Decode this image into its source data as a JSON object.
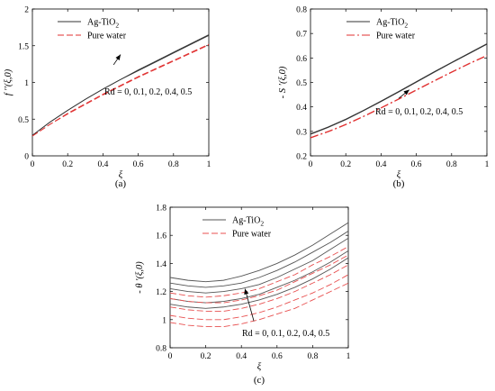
{
  "chart_data": [
    {
      "type": "line",
      "panel": "a",
      "caption": "(a)",
      "xlabel": "ξ",
      "ylabel": "f ′′(ξ,0)",
      "xlim": [
        0,
        1
      ],
      "ylim": [
        0,
        2
      ],
      "xticks": [
        "0",
        "0.2",
        "0.4",
        "0.6",
        "0.8",
        "1"
      ],
      "yticks": [
        "0",
        "0.5",
        "1",
        "1.5",
        "2"
      ],
      "annotation": "Rd = 0, 0.1, 0.2, 0.4, 0.5",
      "legend_position": "top-left",
      "colors": {
        "nanofluid": "#333333",
        "water": "#e03030"
      },
      "series": [
        {
          "name": "Ag-TiO2",
          "legend_label": "Ag-TiO",
          "legend_sub": "2",
          "group": "nanofluid",
          "dash": "solid",
          "x": [
            0,
            0.1,
            0.2,
            0.3,
            0.4,
            0.5,
            0.6,
            0.7,
            0.8,
            0.9,
            1.0
          ],
          "values": [
            0.28,
            0.46,
            0.62,
            0.77,
            0.91,
            1.04,
            1.17,
            1.29,
            1.41,
            1.53,
            1.65
          ]
        },
        {
          "group": "nanofluid",
          "dash": "solid",
          "x": [
            0,
            0.1,
            0.2,
            0.3,
            0.4,
            0.5,
            0.6,
            0.7,
            0.8,
            0.9,
            1.0
          ],
          "values": [
            0.28,
            0.46,
            0.62,
            0.77,
            0.91,
            1.04,
            1.16,
            1.28,
            1.4,
            1.52,
            1.64
          ]
        },
        {
          "name": "Pure water",
          "group": "water",
          "dash": "dash",
          "x": [
            0,
            0.1,
            0.2,
            0.3,
            0.4,
            0.5,
            0.6,
            0.7,
            0.8,
            0.9,
            1.0
          ],
          "values": [
            0.27,
            0.43,
            0.58,
            0.71,
            0.84,
            0.96,
            1.08,
            1.19,
            1.3,
            1.41,
            1.52
          ]
        },
        {
          "group": "water",
          "dash": "dash",
          "x": [
            0,
            0.1,
            0.2,
            0.3,
            0.4,
            0.5,
            0.6,
            0.7,
            0.8,
            0.9,
            1.0
          ],
          "values": [
            0.27,
            0.43,
            0.57,
            0.7,
            0.83,
            0.95,
            1.07,
            1.18,
            1.29,
            1.4,
            1.51
          ]
        }
      ],
      "arrow": {
        "from": [
          0.46,
          1.24
        ],
        "to": [
          0.5,
          1.38
        ]
      }
    },
    {
      "type": "line",
      "panel": "b",
      "caption": "(b)",
      "xlabel": "ξ",
      "ylabel": "- S ′(ξ,0)",
      "xlim": [
        0,
        1
      ],
      "ylim": [
        0.2,
        0.8
      ],
      "xticks": [
        "0",
        "0.2",
        "0.4",
        "0.6",
        "0.8",
        "1"
      ],
      "yticks": [
        "0.2",
        "0.3",
        "0.4",
        "0.5",
        "0.6",
        "0.7",
        "0.8"
      ],
      "annotation": "Rd = 0, 0.1, 0.2, 0.4, 0.5",
      "legend_position": "top-right",
      "colors": {
        "nanofluid": "#333333",
        "water": "#e03030"
      },
      "series": [
        {
          "name": "Ag-TiO2",
          "legend_label": "Ag-TiO",
          "legend_sub": "2",
          "group": "nanofluid",
          "dash": "solid",
          "x": [
            0,
            0.1,
            0.2,
            0.3,
            0.4,
            0.5,
            0.6,
            0.7,
            0.8,
            0.9,
            1.0
          ],
          "values": [
            0.29,
            0.318,
            0.35,
            0.386,
            0.424,
            0.463,
            0.503,
            0.543,
            0.582,
            0.62,
            0.658
          ]
        },
        {
          "group": "nanofluid",
          "dash": "solid",
          "x": [
            0,
            0.1,
            0.2,
            0.3,
            0.4,
            0.5,
            0.6,
            0.7,
            0.8,
            0.9,
            1.0
          ],
          "values": [
            0.288,
            0.316,
            0.348,
            0.384,
            0.422,
            0.461,
            0.501,
            0.541,
            0.58,
            0.618,
            0.656
          ]
        },
        {
          "name": "Pure water",
          "group": "water",
          "dash": "dashdot",
          "x": [
            0,
            0.1,
            0.2,
            0.3,
            0.4,
            0.5,
            0.6,
            0.7,
            0.8,
            0.9,
            1.0
          ],
          "values": [
            0.275,
            0.3,
            0.329,
            0.362,
            0.397,
            0.433,
            0.47,
            0.507,
            0.543,
            0.578,
            0.611
          ]
        },
        {
          "group": "water",
          "dash": "dashdot",
          "x": [
            0,
            0.1,
            0.2,
            0.3,
            0.4,
            0.5,
            0.6,
            0.7,
            0.8,
            0.9,
            1.0
          ],
          "values": [
            0.273,
            0.298,
            0.327,
            0.36,
            0.395,
            0.431,
            0.468,
            0.505,
            0.541,
            0.576,
            0.609
          ]
        }
      ],
      "arrow": {
        "from": [
          0.5,
          0.435
        ],
        "to": [
          0.56,
          0.47
        ]
      }
    },
    {
      "type": "line",
      "panel": "c",
      "caption": "(c)",
      "xlabel": "ξ",
      "ylabel": "- θ ′(ξ,0)",
      "xlim": [
        0,
        1
      ],
      "ylim": [
        0.8,
        1.8
      ],
      "xticks": [
        "0",
        "0.2",
        "0.4",
        "0.6",
        "0.8",
        "1"
      ],
      "yticks": [
        "0.8",
        "1",
        "1.2",
        "1.4",
        "1.6",
        "1.8"
      ],
      "annotation": "Rd = 0, 0.1, 0.2, 0.4, 0.5",
      "legend_position": "top-left",
      "colors": {
        "nanofluid": "#555555",
        "water": "#e85050"
      },
      "series": [
        {
          "name": "Ag-TiO2",
          "legend_label": "Ag-TiO",
          "legend_sub": "2",
          "group": "nanofluid",
          "dash": "solid",
          "x": [
            0,
            0.1,
            0.2,
            0.3,
            0.4,
            0.5,
            0.6,
            0.7,
            0.8,
            0.9,
            1.0
          ],
          "values": [
            1.3,
            1.28,
            1.27,
            1.28,
            1.31,
            1.35,
            1.4,
            1.46,
            1.53,
            1.61,
            1.69
          ]
        },
        {
          "group": "nanofluid",
          "dash": "solid",
          "x": [
            0,
            0.1,
            0.2,
            0.3,
            0.4,
            0.5,
            0.6,
            0.7,
            0.8,
            0.9,
            1.0
          ],
          "values": [
            1.26,
            1.24,
            1.23,
            1.24,
            1.26,
            1.3,
            1.35,
            1.41,
            1.48,
            1.55,
            1.63
          ]
        },
        {
          "group": "nanofluid",
          "dash": "solid",
          "x": [
            0,
            0.1,
            0.2,
            0.3,
            0.4,
            0.5,
            0.6,
            0.7,
            0.8,
            0.9,
            1.0
          ],
          "values": [
            1.22,
            1.2,
            1.19,
            1.2,
            1.22,
            1.25,
            1.3,
            1.36,
            1.42,
            1.5,
            1.58
          ]
        },
        {
          "group": "nanofluid",
          "dash": "solid",
          "x": [
            0,
            0.1,
            0.2,
            0.3,
            0.4,
            0.5,
            0.6,
            0.7,
            0.8,
            0.9,
            1.0
          ],
          "values": [
            1.15,
            1.13,
            1.12,
            1.13,
            1.15,
            1.18,
            1.23,
            1.28,
            1.34,
            1.41,
            1.49
          ]
        },
        {
          "group": "nanofluid",
          "dash": "solid",
          "x": [
            0,
            0.1,
            0.2,
            0.3,
            0.4,
            0.5,
            0.6,
            0.7,
            0.8,
            0.9,
            1.0
          ],
          "values": [
            1.11,
            1.09,
            1.08,
            1.09,
            1.11,
            1.14,
            1.18,
            1.23,
            1.29,
            1.36,
            1.44
          ]
        },
        {
          "name": "Pure water",
          "group": "water",
          "dash": "dash",
          "x": [
            0,
            0.1,
            0.2,
            0.3,
            0.4,
            0.5,
            0.6,
            0.7,
            0.8,
            0.9,
            1.0
          ],
          "values": [
            1.19,
            1.17,
            1.16,
            1.17,
            1.19,
            1.22,
            1.27,
            1.32,
            1.39,
            1.45,
            1.52
          ]
        },
        {
          "group": "water",
          "dash": "dash",
          "x": [
            0,
            0.1,
            0.2,
            0.3,
            0.4,
            0.5,
            0.6,
            0.7,
            0.8,
            0.9,
            1.0
          ],
          "values": [
            1.15,
            1.13,
            1.12,
            1.12,
            1.14,
            1.17,
            1.21,
            1.27,
            1.33,
            1.39,
            1.46
          ]
        },
        {
          "group": "water",
          "dash": "dash",
          "x": [
            0,
            0.1,
            0.2,
            0.3,
            0.4,
            0.5,
            0.6,
            0.7,
            0.8,
            0.9,
            1.0
          ],
          "values": [
            1.09,
            1.07,
            1.06,
            1.06,
            1.08,
            1.11,
            1.15,
            1.2,
            1.26,
            1.32,
            1.39
          ]
        },
        {
          "group": "water",
          "dash": "dash",
          "x": [
            0,
            0.1,
            0.2,
            0.3,
            0.4,
            0.5,
            0.6,
            0.7,
            0.8,
            0.9,
            1.0
          ],
          "values": [
            1.03,
            1.01,
            1.0,
            1.0,
            1.02,
            1.05,
            1.09,
            1.14,
            1.19,
            1.25,
            1.32
          ]
        },
        {
          "group": "water",
          "dash": "dash",
          "x": [
            0,
            0.1,
            0.2,
            0.3,
            0.4,
            0.5,
            0.6,
            0.7,
            0.8,
            0.9,
            1.0
          ],
          "values": [
            0.98,
            0.96,
            0.95,
            0.95,
            0.97,
            1.0,
            1.04,
            1.08,
            1.14,
            1.2,
            1.26
          ]
        }
      ],
      "arrow": {
        "from": [
          0.47,
          0.99
        ],
        "to": [
          0.42,
          1.22
        ]
      }
    }
  ]
}
